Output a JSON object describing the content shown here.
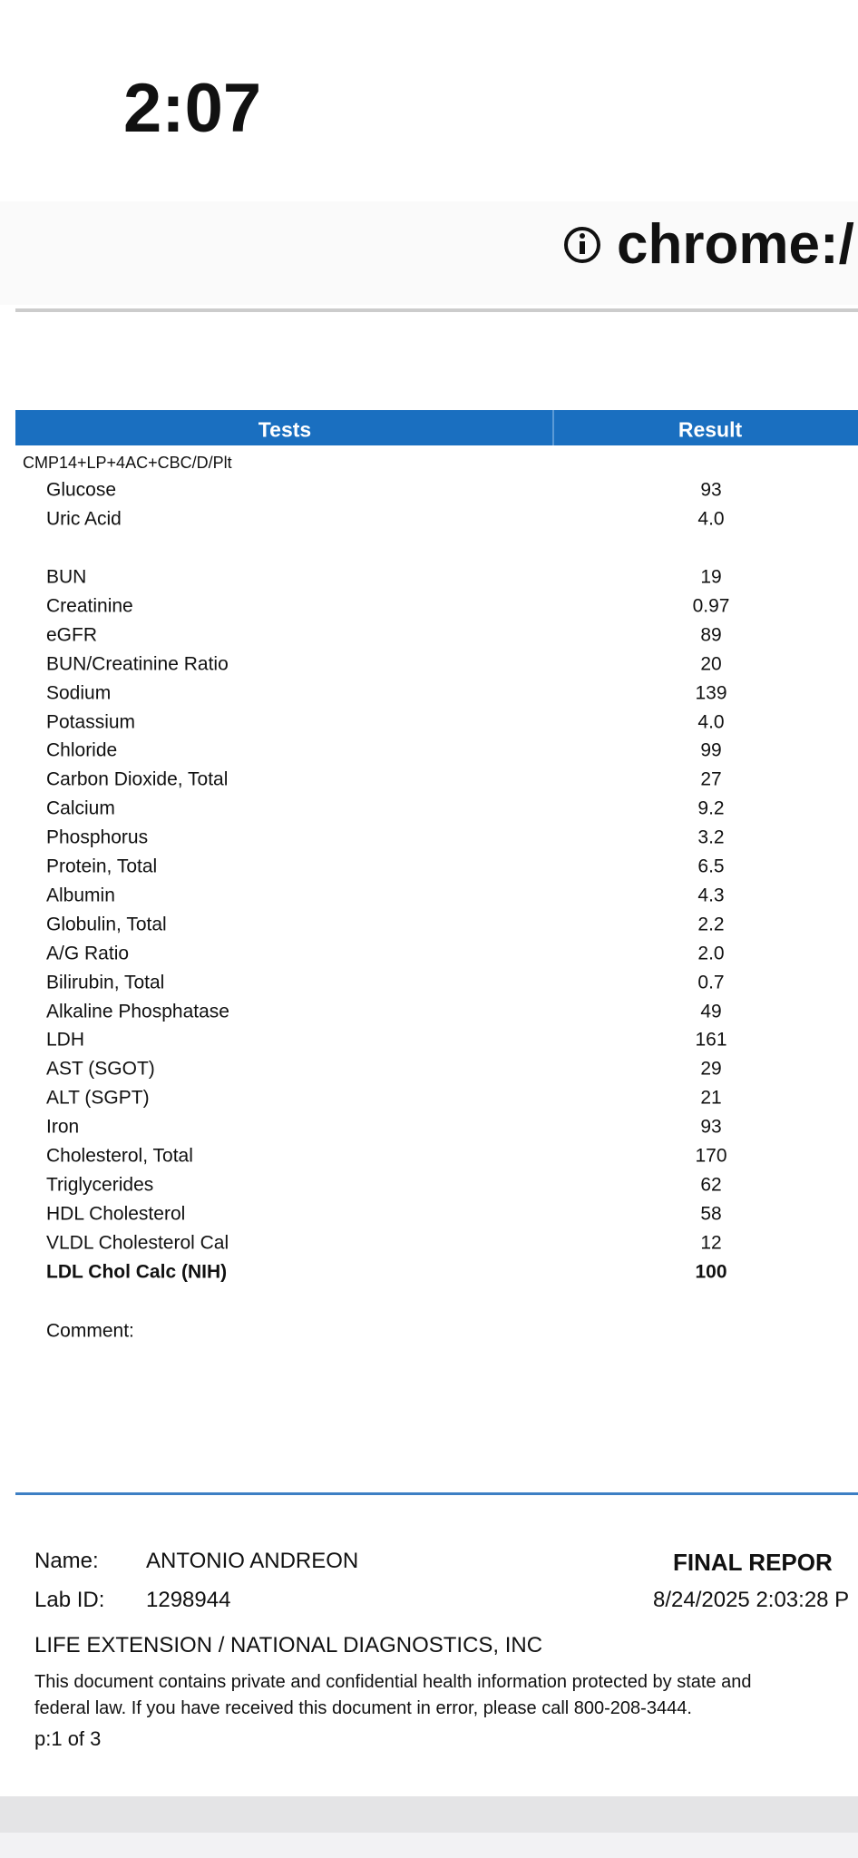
{
  "status_bar": {
    "time": "2:07"
  },
  "address_bar": {
    "url": "chrome:/"
  },
  "report": {
    "header": {
      "tests": "Tests",
      "result": "Result"
    },
    "panel": "CMP14+LP+4AC+CBC/D/Plt",
    "rows": [
      [
        "Glucose",
        "93"
      ],
      [
        "Uric Acid",
        "4.0"
      ],
      [
        "BUN",
        "19"
      ],
      [
        "Creatinine",
        "0.97"
      ],
      [
        "eGFR",
        "89"
      ],
      [
        "BUN/Creatinine Ratio",
        "20"
      ],
      [
        "Sodium",
        "139"
      ],
      [
        "Potassium",
        "4.0"
      ],
      [
        "Chloride",
        "99"
      ],
      [
        "Carbon Dioxide, Total",
        "27"
      ],
      [
        "Calcium",
        "9.2"
      ],
      [
        "Phosphorus",
        "3.2"
      ],
      [
        "Protein, Total",
        "6.5"
      ],
      [
        "Albumin",
        "4.3"
      ],
      [
        "Globulin, Total",
        "2.2"
      ],
      [
        "A/G Ratio",
        "2.0"
      ],
      [
        "Bilirubin, Total",
        "0.7"
      ],
      [
        "Alkaline Phosphatase",
        "49"
      ],
      [
        "LDH",
        "161"
      ],
      [
        "AST (SGOT)",
        "29"
      ],
      [
        "ALT (SGPT)",
        "21"
      ],
      [
        "Iron",
        "93"
      ],
      [
        "Cholesterol, Total",
        "170"
      ],
      [
        "Triglycerides",
        "62"
      ],
      [
        "HDL Cholesterol",
        "58"
      ],
      [
        "VLDL Cholesterol Cal",
        "12"
      ],
      [
        "LDL Chol Calc (NIH)",
        "100"
      ]
    ],
    "comment": "Comment:"
  },
  "footer": {
    "name_label": "Name:",
    "name": "ANTONIO ANDREON",
    "lab_id_label": "Lab ID:",
    "lab_id": "1298944",
    "status": "FINAL REPOR",
    "datetime": "8/24/2025 2:03:28 P",
    "company": "LIFE EXTENSION / NATIONAL DIAGNOSTICS, INC",
    "disclaimer_1": "This document contains private and confidential health information protected by state and",
    "disclaimer_2": "federal law.  If you have received this document in error, please call 800-208-3444.",
    "page": "p:1 of 3"
  }
}
